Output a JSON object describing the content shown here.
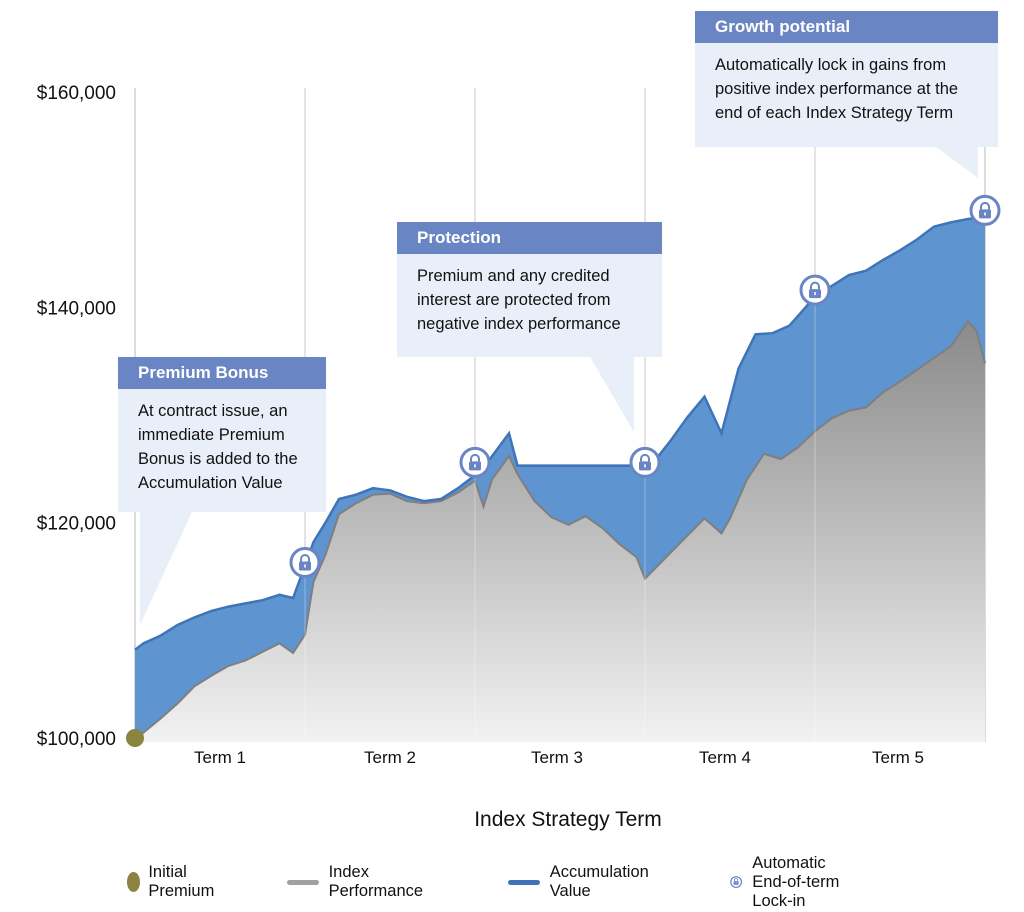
{
  "chart_data": {
    "type": "area",
    "ylim": [
      100000,
      160000
    ],
    "yticks": [
      {
        "value": 160000,
        "label": "$160,000"
      },
      {
        "value": 140000,
        "label": "$140,000"
      },
      {
        "value": 120000,
        "label": "$120,000"
      },
      {
        "value": 100000,
        "label": "$100,000"
      }
    ],
    "xlim": [
      0,
      5
    ],
    "xlabel": "Index Strategy Term",
    "categories": [
      "Term 1",
      "Term 2",
      "Term 3",
      "Term 4",
      "Term 5"
    ],
    "series": [
      {
        "name": "Index Performance",
        "points": [
          [
            0.0,
            100000
          ],
          [
            0.05,
            100500
          ],
          [
            0.15,
            101800
          ],
          [
            0.25,
            103200
          ],
          [
            0.35,
            104800
          ],
          [
            0.45,
            105800
          ],
          [
            0.55,
            106700
          ],
          [
            0.65,
            107200
          ],
          [
            0.75,
            108000
          ],
          [
            0.85,
            108800
          ],
          [
            0.93,
            107900
          ],
          [
            1.0,
            109600
          ],
          [
            1.05,
            114500
          ],
          [
            1.12,
            117000
          ],
          [
            1.2,
            120800
          ],
          [
            1.3,
            121800
          ],
          [
            1.4,
            122600
          ],
          [
            1.5,
            122700
          ],
          [
            1.6,
            122000
          ],
          [
            1.7,
            121800
          ],
          [
            1.8,
            122000
          ],
          [
            1.9,
            122800
          ],
          [
            2.0,
            123900
          ],
          [
            2.05,
            121500
          ],
          [
            2.1,
            124000
          ],
          [
            2.2,
            126200
          ],
          [
            2.25,
            124500
          ],
          [
            2.35,
            122000
          ],
          [
            2.45,
            120500
          ],
          [
            2.55,
            119800
          ],
          [
            2.65,
            120600
          ],
          [
            2.75,
            119500
          ],
          [
            2.85,
            118000
          ],
          [
            2.95,
            116800
          ],
          [
            3.0,
            114800
          ],
          [
            3.05,
            115600
          ],
          [
            3.15,
            117200
          ],
          [
            3.25,
            118800
          ],
          [
            3.35,
            120400
          ],
          [
            3.45,
            119000
          ],
          [
            3.5,
            120400
          ],
          [
            3.6,
            124000
          ],
          [
            3.7,
            126400
          ],
          [
            3.8,
            125900
          ],
          [
            3.9,
            127000
          ],
          [
            4.0,
            128500
          ],
          [
            4.1,
            129700
          ],
          [
            4.2,
            130400
          ],
          [
            4.3,
            130700
          ],
          [
            4.4,
            132100
          ],
          [
            4.5,
            133100
          ],
          [
            4.6,
            134200
          ],
          [
            4.7,
            135300
          ],
          [
            4.8,
            136400
          ],
          [
            4.9,
            138700
          ],
          [
            4.95,
            137800
          ],
          [
            5.0,
            134800
          ]
        ]
      },
      {
        "name": "Accumulation Value",
        "points": [
          [
            0.0,
            108200
          ],
          [
            0.05,
            108800
          ],
          [
            0.15,
            109500
          ],
          [
            0.25,
            110500
          ],
          [
            0.35,
            111200
          ],
          [
            0.45,
            111800
          ],
          [
            0.55,
            112200
          ],
          [
            0.65,
            112500
          ],
          [
            0.75,
            112800
          ],
          [
            0.85,
            113300
          ],
          [
            0.93,
            113000
          ],
          [
            1.0,
            116000
          ],
          [
            1.05,
            118200
          ],
          [
            1.12,
            120000
          ],
          [
            1.2,
            122200
          ],
          [
            1.3,
            122600
          ],
          [
            1.4,
            123200
          ],
          [
            1.5,
            123000
          ],
          [
            1.6,
            122400
          ],
          [
            1.7,
            122000
          ],
          [
            1.8,
            122200
          ],
          [
            1.9,
            123200
          ],
          [
            2.0,
            124400
          ],
          [
            2.05,
            125100
          ],
          [
            2.2,
            128300
          ],
          [
            2.25,
            125300
          ],
          [
            3.0,
            125300
          ],
          [
            3.05,
            125600
          ],
          [
            3.15,
            127600
          ],
          [
            3.25,
            129800
          ],
          [
            3.35,
            131700
          ],
          [
            3.45,
            128300
          ],
          [
            3.55,
            134300
          ],
          [
            3.65,
            137500
          ],
          [
            3.75,
            137600
          ],
          [
            3.85,
            138300
          ],
          [
            3.95,
            140100
          ],
          [
            4.0,
            141100
          ],
          [
            4.1,
            142000
          ],
          [
            4.2,
            143000
          ],
          [
            4.3,
            143400
          ],
          [
            4.4,
            144400
          ],
          [
            4.5,
            145300
          ],
          [
            4.6,
            146300
          ],
          [
            4.7,
            147500
          ],
          [
            4.8,
            147900
          ],
          [
            4.9,
            148200
          ],
          [
            5.0,
            148400
          ]
        ]
      }
    ],
    "initial_premium": {
      "x": 0,
      "value": 100000
    },
    "lockins": [
      {
        "x": 1,
        "value": 116300
      },
      {
        "x": 2,
        "value": 125600
      },
      {
        "x": 3,
        "value": 125600
      },
      {
        "x": 4,
        "value": 141600
      },
      {
        "x": 5,
        "value": 149000
      }
    ],
    "legend": [
      "Initial Premium",
      "Index Performance",
      "Accumulation Value",
      "Automatic End-of-term Lock-in"
    ]
  },
  "colors": {
    "accumulation_fill": "#5e94cf",
    "accumulation_line": "#3f74b8",
    "index_line": "#8c8c8c",
    "index_fill_top": "#8a8a8a",
    "index_fill_bottom": "#f2f2f2",
    "initial_premium": "#8b8340",
    "callout_header": "#6a85c4",
    "callout_body": "#e9eff9",
    "lock": "#6a85c4",
    "grid": "#d0d0d0"
  },
  "callouts": {
    "growth": {
      "title": "Growth potential",
      "text": "Automatically lock in gains from\npositive index performance at the\nend of each Index Strategy Term"
    },
    "protection": {
      "title": "Protection",
      "text": "Premium and any credited\ninterest are protected from\nnegative index performance"
    },
    "bonus": {
      "title": "Premium Bonus",
      "text": "At contract issue, an\nimmediate Premium\nBonus is added to the\nAccumulation Value"
    }
  },
  "legend": {
    "initial_premium": "Initial Premium",
    "index_performance": "Index Performance",
    "accumulation_value": "Accumulation Value",
    "lockin": "Automatic End-of-term Lock-in"
  }
}
